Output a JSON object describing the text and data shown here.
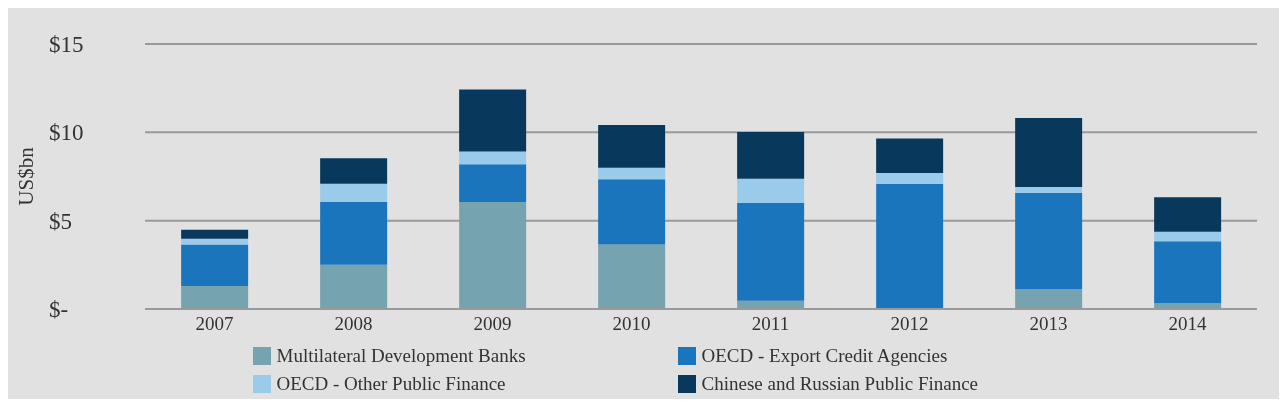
{
  "chart_data": {
    "type": "bar",
    "stacked": true,
    "ylabel": "US$bn",
    "categories": [
      "2007",
      "2008",
      "2009",
      "2010",
      "2011",
      "2012",
      "2013",
      "2014"
    ],
    "series": [
      {
        "name": "Multilateral Development Banks",
        "color": "#75a3af",
        "values": [
          1.3,
          2.5,
          6.05,
          3.65,
          0.47,
          0,
          1.12,
          0.33
        ]
      },
      {
        "name": "OECD - Export Credit Agencies",
        "color": "#1b75bc",
        "values": [
          2.35,
          3.55,
          2.15,
          3.7,
          5.53,
          7.09,
          5.46,
          3.51
        ]
      },
      {
        "name": "OECD - Other Public Finance",
        "color": "#9bcbea",
        "values": [
          0.33,
          1.04,
          0.72,
          0.65,
          1.37,
          0.61,
          0.33,
          0.53
        ]
      },
      {
        "name": "Chinese and Russian Public Finance",
        "color": "#08395c",
        "values": [
          0.51,
          1.44,
          3.51,
          2.42,
          2.65,
          1.95,
          3.9,
          1.96
        ]
      }
    ],
    "ylim": [
      0,
      15
    ],
    "yticks": [
      {
        "value": 0,
        "label": "$-"
      },
      {
        "value": 5,
        "label": "$5"
      },
      {
        "value": 10,
        "label": "$10"
      },
      {
        "value": 15,
        "label": "$15"
      }
    ],
    "grid": "y",
    "legend": "bottom"
  }
}
